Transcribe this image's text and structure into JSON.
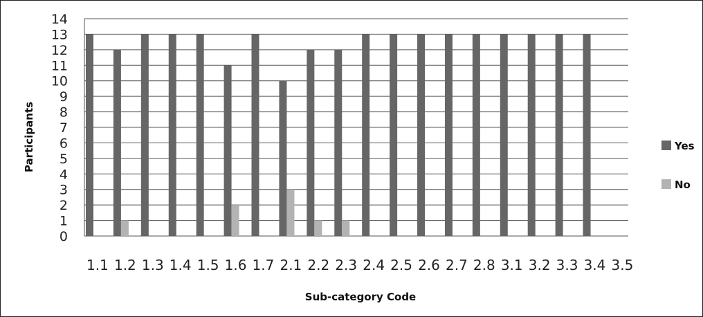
{
  "chart_data": {
    "type": "bar",
    "categories": [
      "1.1",
      "1.2",
      "1.3",
      "1.4",
      "1.5",
      "1.6",
      "1.7",
      "2.1",
      "2.2",
      "2.3",
      "2.4",
      "2.5",
      "2.6",
      "2.7",
      "2.8",
      "3.1",
      "3.2",
      "3.3",
      "3.4",
      "3.5"
    ],
    "series": [
      {
        "name": "Yes",
        "color": "#666666",
        "values": [
          13,
          12,
          13,
          13,
          13,
          11,
          13,
          10,
          12,
          12,
          13,
          13,
          13,
          13,
          13,
          13,
          13,
          13,
          13,
          null
        ]
      },
      {
        "name": "No",
        "color": "#b3b3b3",
        "values": [
          0,
          1,
          0,
          0,
          0,
          2,
          0,
          3,
          1,
          1,
          0,
          0,
          0,
          0,
          0,
          0,
          0,
          0,
          0,
          null
        ]
      }
    ],
    "xlabel": "Sub-category Code",
    "ylabel": "Participants",
    "ylim": [
      0,
      14
    ],
    "yticks": [
      0,
      1,
      2,
      3,
      4,
      5,
      6,
      7,
      8,
      9,
      10,
      11,
      12,
      13,
      14
    ],
    "grid": true,
    "legend_position": "right"
  }
}
